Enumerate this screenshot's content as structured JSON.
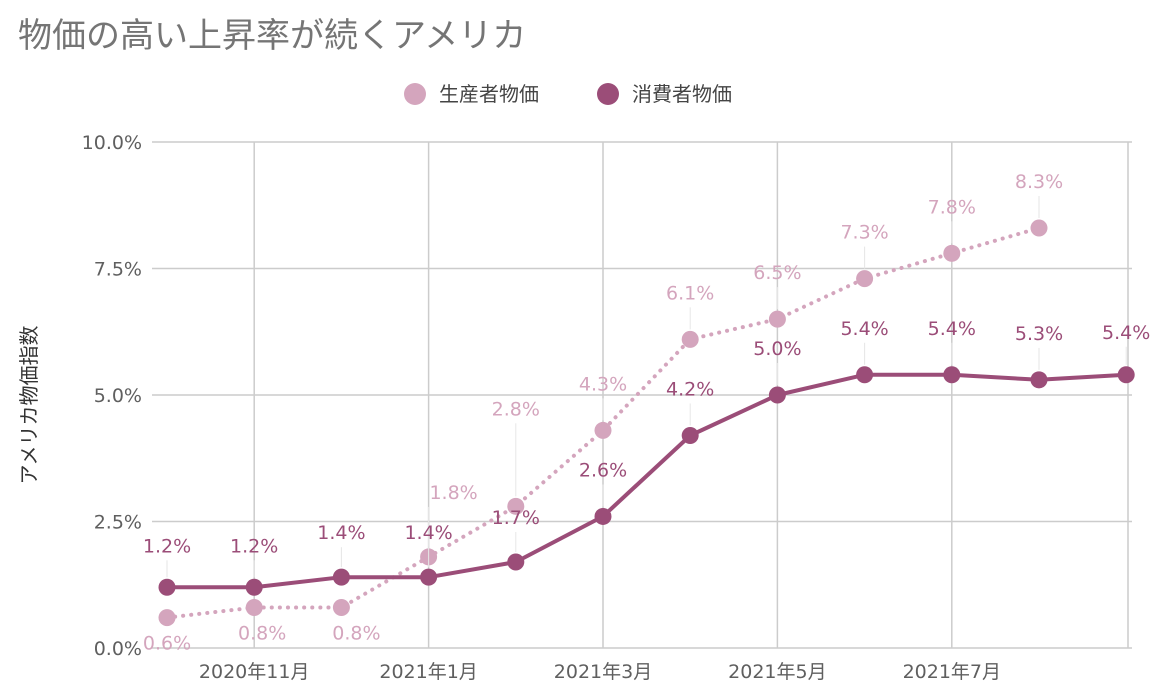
{
  "title": "物価の高い上昇率が続くアメリカ",
  "chart_data": {
    "type": "line",
    "title": "物価の高い上昇率が続くアメリカ",
    "ylabel": "アメリカ物価指数",
    "xlabel": "",
    "x": [
      "2020-10",
      "2020-11",
      "2020-12",
      "2021-01",
      "2021-02",
      "2021-03",
      "2021-04",
      "2021-05",
      "2021-06",
      "2021-07",
      "2021-08",
      "2021-09"
    ],
    "x_tick_labels": [
      "2020年11月",
      "2021年1月",
      "2021年3月",
      "2021年5月",
      "2021年7月"
    ],
    "x_tick_positions": [
      "2020-11",
      "2021-01",
      "2021-03",
      "2021-05",
      "2021-07"
    ],
    "y_tick_labels": [
      "0.0%",
      "2.5%",
      "5.0%",
      "7.5%",
      "10.0%"
    ],
    "y_tick_values": [
      0,
      2.5,
      5.0,
      7.5,
      10.0
    ],
    "ylim": [
      0,
      10
    ],
    "grid": true,
    "legend_position": "top-center",
    "series": [
      {
        "name": "生産者物価",
        "color": "#d4a5bd",
        "style": "dotted",
        "values": [
          0.6,
          0.8,
          0.8,
          1.8,
          2.8,
          4.3,
          6.1,
          6.5,
          7.3,
          7.8,
          8.3,
          null
        ],
        "labels": [
          "0.6%",
          "0.8%",
          "0.8%",
          "1.8%",
          "2.8%",
          "4.3%",
          "6.1%",
          "6.5%",
          "7.3%",
          "7.8%",
          "8.3%",
          ""
        ]
      },
      {
        "name": "消費者物価",
        "color": "#9b4d78",
        "style": "solid",
        "values": [
          1.2,
          1.2,
          1.4,
          1.4,
          1.7,
          2.6,
          4.2,
          5.0,
          5.4,
          5.4,
          5.3,
          5.4
        ],
        "labels": [
          "1.2%",
          "1.2%",
          "1.4%",
          "1.4%",
          "1.7%",
          "2.6%",
          "4.2%",
          "5.0%",
          "5.4%",
          "5.4%",
          "5.3%",
          "5.4%"
        ]
      }
    ]
  }
}
